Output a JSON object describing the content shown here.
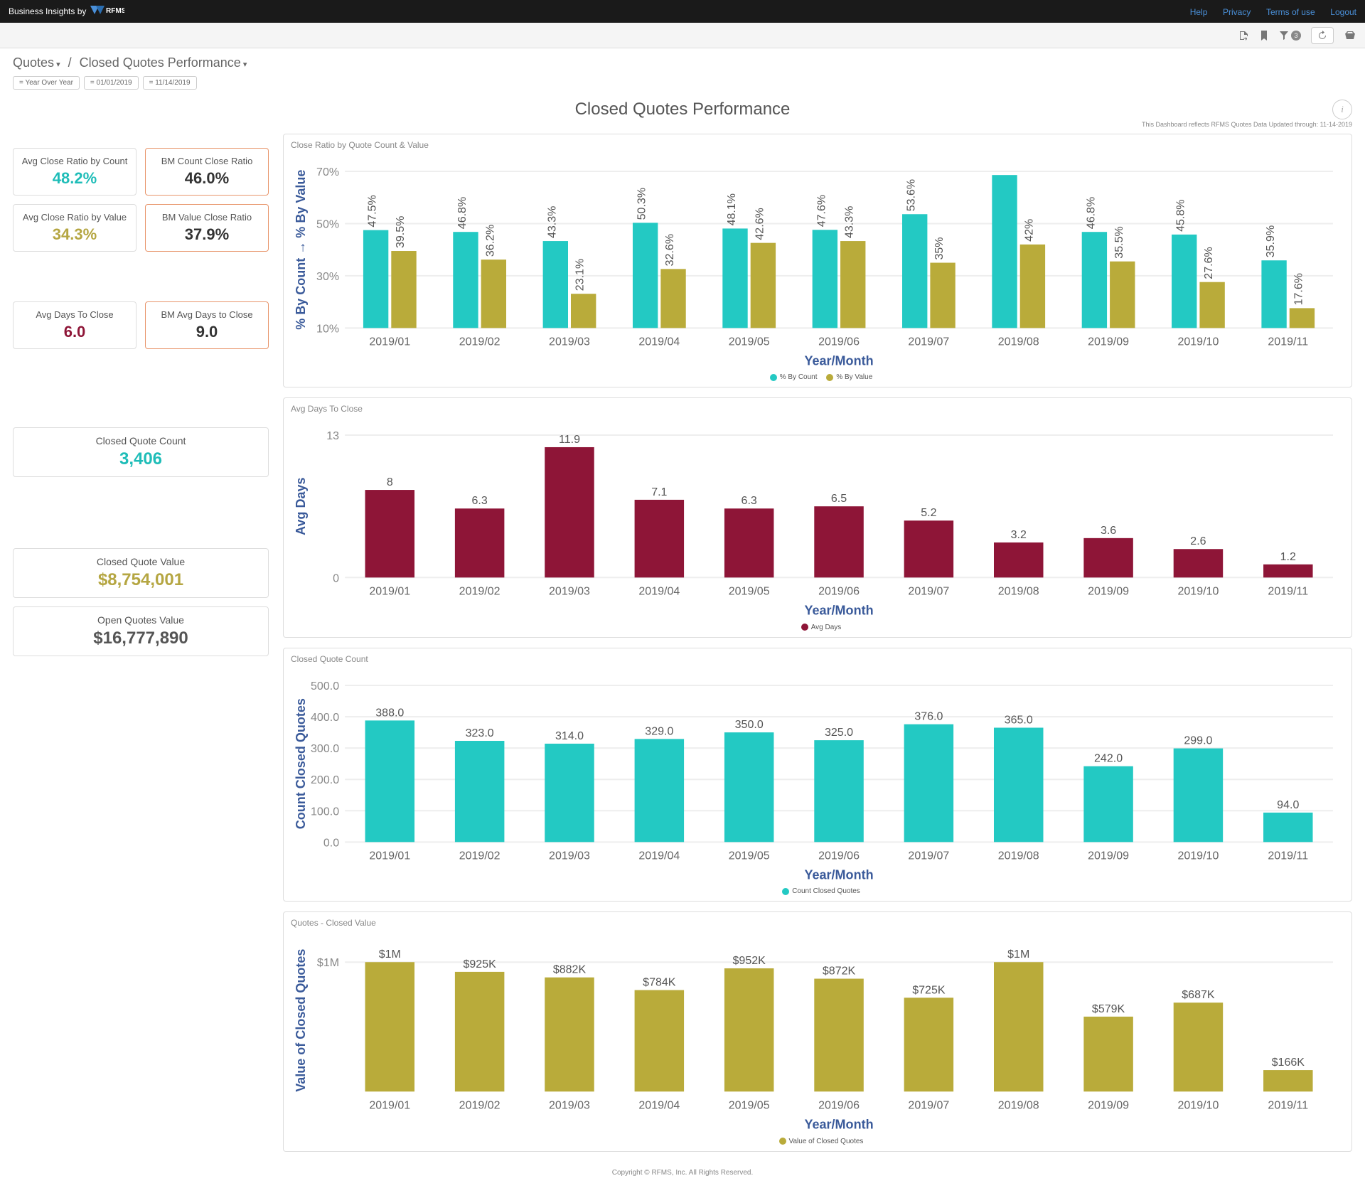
{
  "topbar": {
    "brand_prefix": "Business Insights by",
    "brand_name": "RFMS",
    "links": {
      "help": "Help",
      "privacy": "Privacy",
      "terms": "Terms of use",
      "logout": "Logout"
    }
  },
  "toolbar": {
    "filter_count": "3"
  },
  "breadcrumbs": {
    "root": "Quotes",
    "current": "Closed Quotes Performance"
  },
  "filters": {
    "a": "= Year Over Year",
    "b": "= 01/01/2019",
    "c": "= 11/14/2019"
  },
  "page": {
    "title": "Closed Quotes Performance",
    "update_note": "This Dashboard reflects RFMS Quotes Data Updated through: 11-14-2019"
  },
  "kpi": {
    "avg_close_ratio_count": {
      "label": "Avg Close Ratio by Count",
      "value": "48.2%",
      "color": "teal"
    },
    "bm_count_close_ratio": {
      "label": "BM Count Close Ratio",
      "value": "46.0%",
      "color": "dark",
      "accent": true
    },
    "avg_close_ratio_value": {
      "label": "Avg Close Ratio by Value",
      "value": "34.3%",
      "color": "olive"
    },
    "bm_value_close_ratio": {
      "label": "BM Value Close Ratio",
      "value": "37.9%",
      "color": "dark",
      "accent": true
    },
    "avg_days_to_close": {
      "label": "Avg Days To Close",
      "value": "6.0",
      "color": "maroon"
    },
    "bm_avg_days_to_close": {
      "label": "BM Avg Days to Close",
      "value": "9.0",
      "color": "dark",
      "accent": true
    },
    "closed_quote_count": {
      "label": "Closed Quote Count",
      "value": "3,406",
      "color": "teal"
    },
    "closed_quote_value": {
      "label": "Closed Quote Value",
      "value": "$8,754,001",
      "color": "olive"
    },
    "open_quotes_value": {
      "label": "Open Quotes Value",
      "value": "$16,777,890",
      "color": "gray"
    }
  },
  "colors": {
    "teal": "#23c9c3",
    "olive": "#b9ab3a",
    "maroon": "#8e1537",
    "grid": "#eeeeee",
    "axis_text": "#888888",
    "xaxis_title": "#3a5a9a"
  },
  "months": [
    "2019/01",
    "2019/02",
    "2019/03",
    "2019/04",
    "2019/05",
    "2019/06",
    "2019/07",
    "2019/08",
    "2019/09",
    "2019/10",
    "2019/11"
  ],
  "chart_close_ratio": {
    "title": "Close Ratio by Quote Count & Value",
    "type": "grouped-bar",
    "y_label": "% By Count → % By Value",
    "x_label": "Year/Month",
    "ylim": [
      10,
      70
    ],
    "ytick_step": 20,
    "series": [
      {
        "name": "% By Count",
        "color": "#23c9c3",
        "values": [
          47.5,
          46.8,
          43.3,
          50.3,
          48.1,
          47.6,
          53.6,
          null,
          46.8,
          45.8,
          35.9
        ],
        "labels": [
          "47.5%",
          "46.8%",
          "43.3%",
          "50.3%",
          "48.1%",
          "47.6%",
          "53.6%",
          "",
          "46.8%",
          "45.8%",
          "35.9%"
        ]
      },
      {
        "name": "% By Value",
        "color": "#b9ab3a",
        "values": [
          39.5,
          36.2,
          23.1,
          32.6,
          42.6,
          43.3,
          35,
          42,
          35.5,
          27.6,
          17.6
        ],
        "labels": [
          "39.5%",
          "36.2%",
          "23.1%",
          "32.6%",
          "42.6%",
          "43.3%",
          "35%",
          "42%",
          "35.5%",
          "27.6%",
          "17.6%"
        ]
      }
    ],
    "legend": [
      "% By Count",
      "% By Value"
    ]
  },
  "chart_avg_days": {
    "title": "Avg Days To Close",
    "type": "bar",
    "y_label": "Avg Days",
    "x_label": "Year/Month",
    "ylim": [
      0,
      13
    ],
    "yticks": [
      0,
      13
    ],
    "color": "#8e1537",
    "values": [
      8,
      6.3,
      11.9,
      7.1,
      6.3,
      6.5,
      5.2,
      3.2,
      3.6,
      2.6,
      1.2
    ],
    "labels": [
      "8",
      "6.3",
      "11.9",
      "7.1",
      "6.3",
      "6.5",
      "5.2",
      "3.2",
      "3.6",
      "2.6",
      "1.2"
    ],
    "legend": [
      "Avg Days"
    ]
  },
  "chart_count": {
    "title": "Closed Quote Count",
    "type": "bar",
    "y_label": "Count Closed Quotes",
    "x_label": "Year/Month",
    "ylim": [
      0,
      500
    ],
    "ytick_step": 100,
    "color": "#23c9c3",
    "values": [
      388,
      323,
      314,
      329,
      350,
      325,
      376,
      365,
      242,
      299,
      94
    ],
    "labels": [
      "388.0",
      "323.0",
      "314.0",
      "329.0",
      "350.0",
      "325.0",
      "376.0",
      "365.0",
      "242.0",
      "299.0",
      "94.0"
    ],
    "legend": [
      "Count Closed Quotes"
    ]
  },
  "chart_value": {
    "title": "Quotes - Closed Value",
    "type": "bar",
    "y_label": "Value of Closed Quotes",
    "x_label": "Year/Month",
    "ylim": [
      0,
      1100000
    ],
    "yticks_labels": [
      "$1M"
    ],
    "yticks_values": [
      1000000
    ],
    "color": "#b9ab3a",
    "values": [
      1000000,
      925000,
      882000,
      784000,
      952000,
      872000,
      725000,
      1000000,
      579000,
      687000,
      166000
    ],
    "labels": [
      "$1M",
      "$925K",
      "$882K",
      "$784K",
      "$952K",
      "$872K",
      "$725K",
      "$1M",
      "$579K",
      "$687K",
      "$166K"
    ],
    "legend": [
      "Value of Closed Quotes"
    ]
  },
  "footer": "Copyright © RFMS, Inc.  All Rights Reserved."
}
